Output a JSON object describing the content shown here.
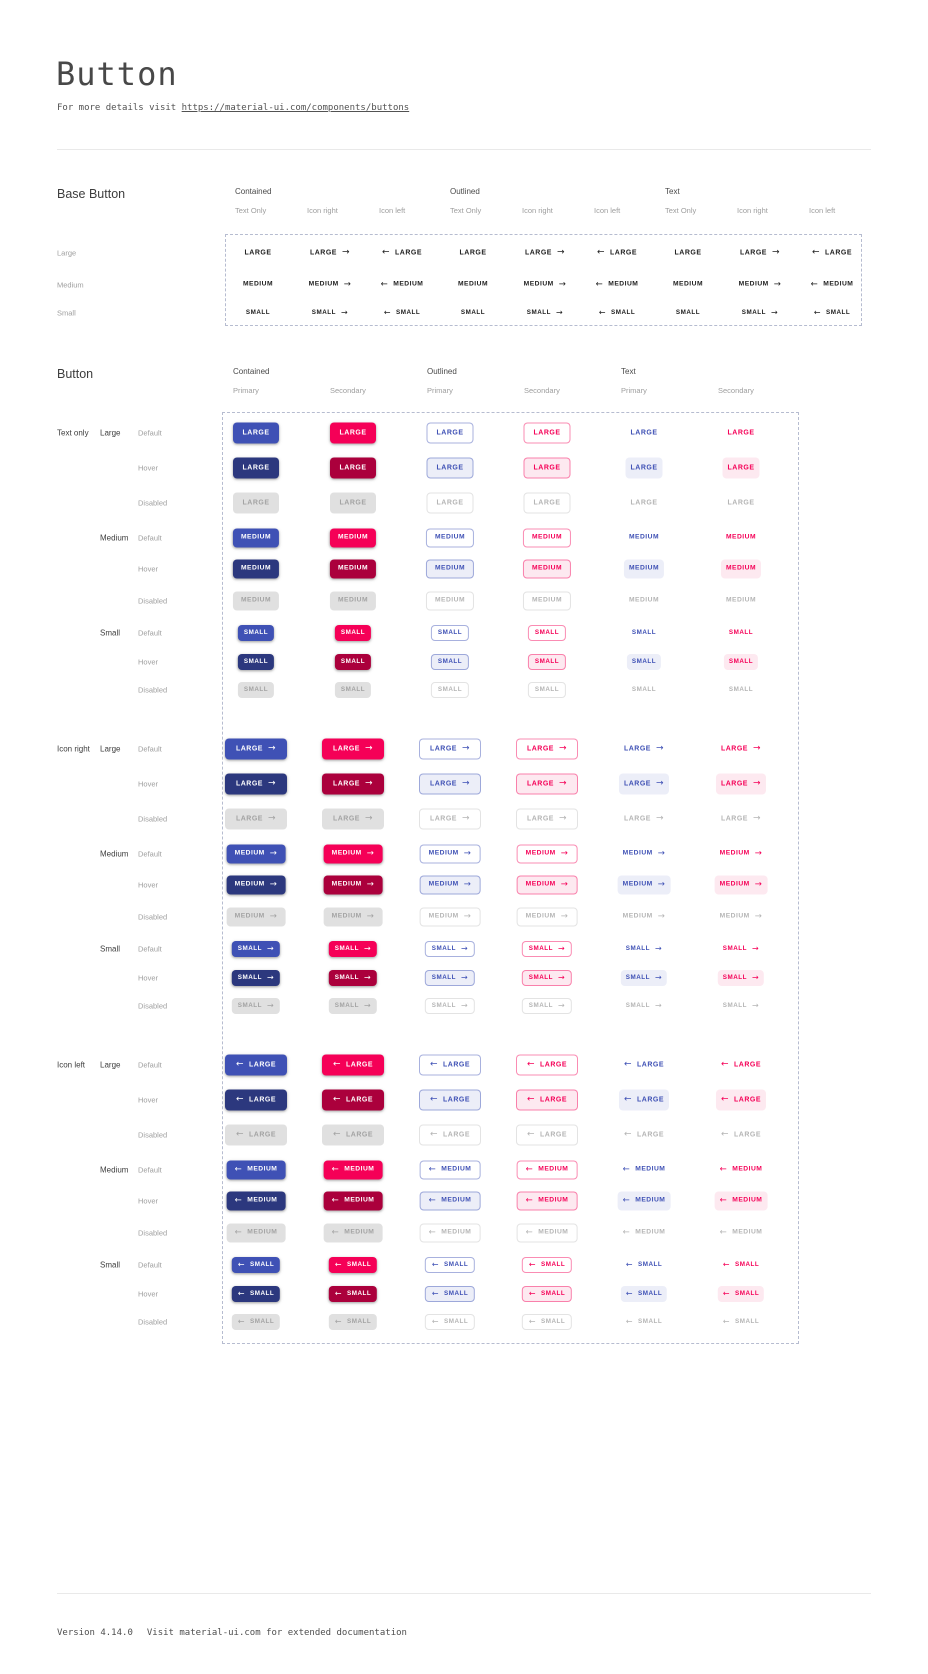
{
  "header": {
    "title": "Button",
    "subtitle_prefix": "For more details visit ",
    "subtitle_link": "https://material-ui.com/components/buttons"
  },
  "footer": {
    "version": "Version 4.14.0",
    "note": "Visit material-ui.com for extended documentation"
  },
  "colors": {
    "primary": "#3f51b5",
    "primary_hover": "#2c387e",
    "secondary": "#f50057",
    "secondary_hover": "#ab003c",
    "primary_tint": "#eceef8",
    "secondary_tint": "#fde9f0",
    "disabled_bg": "#e0e0e0",
    "disabled_contained_text": "#a3a3a3",
    "disabled_text": "#b5b5b5",
    "base_button_text": "#212121"
  },
  "icons": {
    "arrow_right": "→",
    "arrow_left": "←"
  },
  "base_section": {
    "title": "Base Button",
    "column_groups": [
      {
        "label": "Contained",
        "subcolumns": [
          "Text Only",
          "Icon right",
          "Icon left"
        ]
      },
      {
        "label": "Outlined",
        "subcolumns": [
          "Text Only",
          "Icon right",
          "Icon left"
        ]
      },
      {
        "label": "Text",
        "subcolumns": [
          "Text Only",
          "Icon right",
          "Icon left"
        ]
      }
    ],
    "rows": [
      {
        "label": "Large",
        "button_text": "LARGE"
      },
      {
        "label": "Medium",
        "button_text": "MEDIUM"
      },
      {
        "label": "Small",
        "button_text": "SMALL"
      }
    ]
  },
  "button_section": {
    "title": "Button",
    "column_groups": [
      {
        "label": "Contained",
        "subcolumns": [
          "Primary",
          "Secondary"
        ]
      },
      {
        "label": "Outlined",
        "subcolumns": [
          "Primary",
          "Secondary"
        ]
      },
      {
        "label": "Text",
        "subcolumns": [
          "Primary",
          "Secondary"
        ]
      }
    ],
    "icon_groups": [
      {
        "label": "Text only",
        "icon": "none"
      },
      {
        "label": "Icon right",
        "icon": "right"
      },
      {
        "label": "Icon left",
        "icon": "left"
      }
    ],
    "sizes": [
      {
        "label": "Large",
        "button_text": "LARGE"
      },
      {
        "label": "Medium",
        "button_text": "MEDIUM"
      },
      {
        "label": "Small",
        "button_text": "SMALL"
      }
    ],
    "states": [
      "Default",
      "Hover",
      "Disabled"
    ]
  }
}
